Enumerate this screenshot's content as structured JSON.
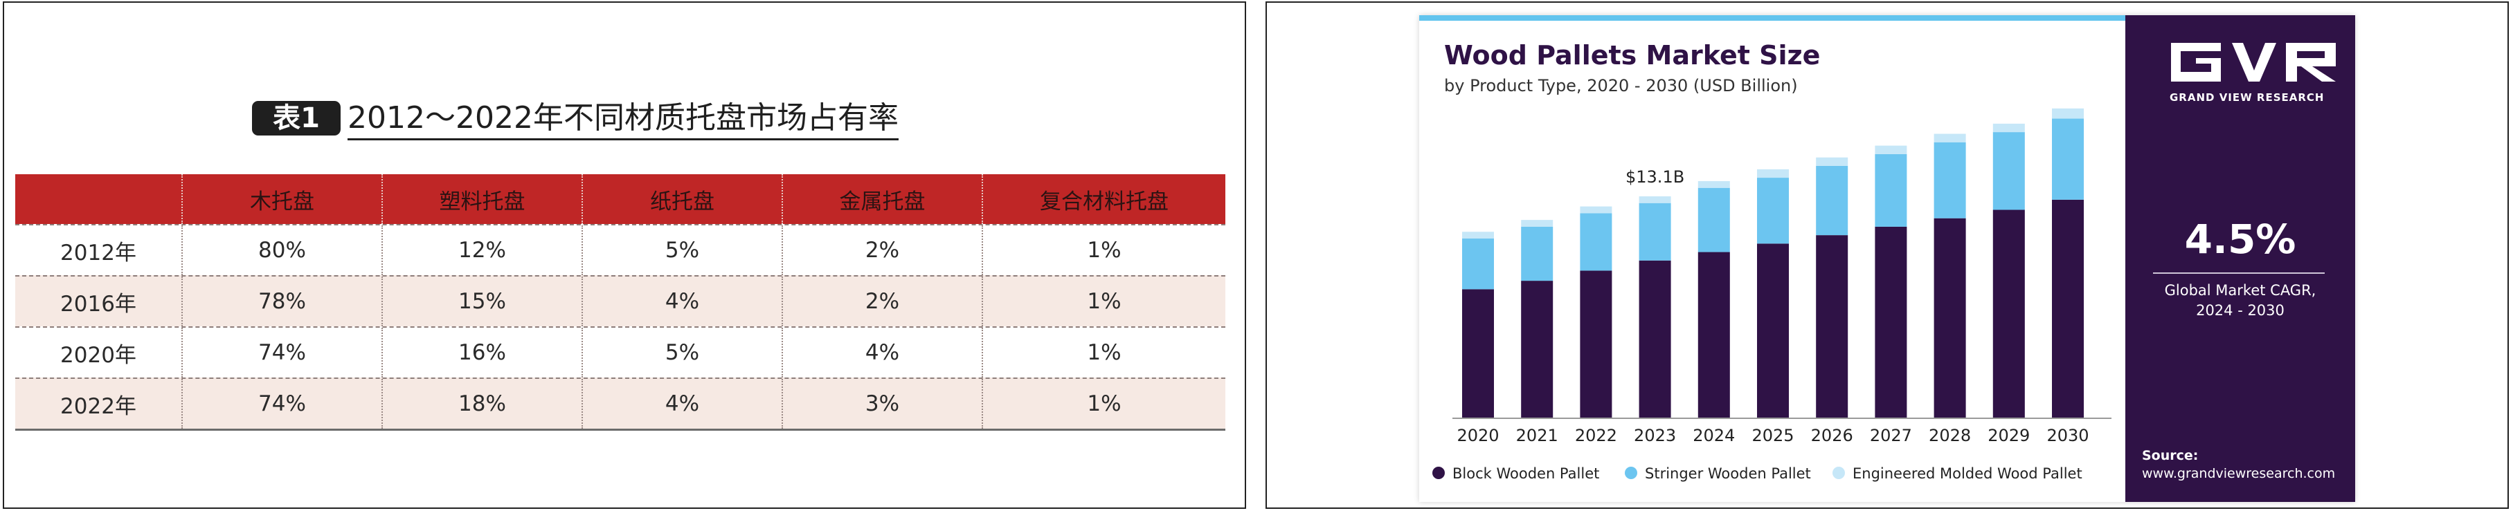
{
  "table": {
    "badge": "表1",
    "caption": "2012～2022年不同材质托盘市场占有率",
    "headers": [
      "",
      "木托盘",
      "塑料托盘",
      "纸托盘",
      "金属托盘",
      "复合材料托盘"
    ],
    "rows": [
      [
        "2012年",
        "80%",
        "12%",
        "5%",
        "2%",
        "1%"
      ],
      [
        "2016年",
        "78%",
        "15%",
        "4%",
        "2%",
        "1%"
      ],
      [
        "2020年",
        "74%",
        "16%",
        "5%",
        "4%",
        "1%"
      ],
      [
        "2022年",
        "74%",
        "18%",
        "4%",
        "3%",
        "1%"
      ]
    ]
  },
  "chart_data": {
    "type": "bar",
    "stacked": true,
    "title": "Wood Pallets Market Size",
    "subtitle": "by Product Type, 2020 - 2030 (USD Billion)",
    "categories": [
      "2020",
      "2021",
      "2022",
      "2023",
      "2024",
      "2025",
      "2026",
      "2027",
      "2028",
      "2029",
      "2030"
    ],
    "series": [
      {
        "name": "Block Wooden Pallet",
        "color": "#2f1246",
        "values": [
          7.6,
          8.1,
          8.7,
          9.3,
          9.8,
          10.3,
          10.8,
          11.3,
          11.8,
          12.3,
          12.9
        ]
      },
      {
        "name": "Stringer Wooden Pallet",
        "color": "#6cc5f0",
        "values": [
          3.0,
          3.2,
          3.4,
          3.4,
          3.8,
          3.9,
          4.1,
          4.3,
          4.5,
          4.6,
          4.8
        ]
      },
      {
        "name": "Engineered Molded Wood Pallet",
        "color": "#c6e7f8",
        "values": [
          0.4,
          0.4,
          0.4,
          0.4,
          0.4,
          0.5,
          0.5,
          0.5,
          0.5,
          0.5,
          0.6
        ]
      }
    ],
    "annotation": {
      "category": "2023",
      "label": "$13.1B"
    },
    "ylim": [
      0,
      18.5
    ],
    "xlabel": "",
    "ylabel": "",
    "legend_position": "bottom"
  },
  "sidebar": {
    "logo_text": "GRAND VIEW RESEARCH",
    "cagr_value": "4.5%",
    "cagr_label_line1": "Global Market CAGR,",
    "cagr_label_line2": "2024 - 2030",
    "source_label": "Source:",
    "source_url": "www.grandviewresearch.com"
  }
}
